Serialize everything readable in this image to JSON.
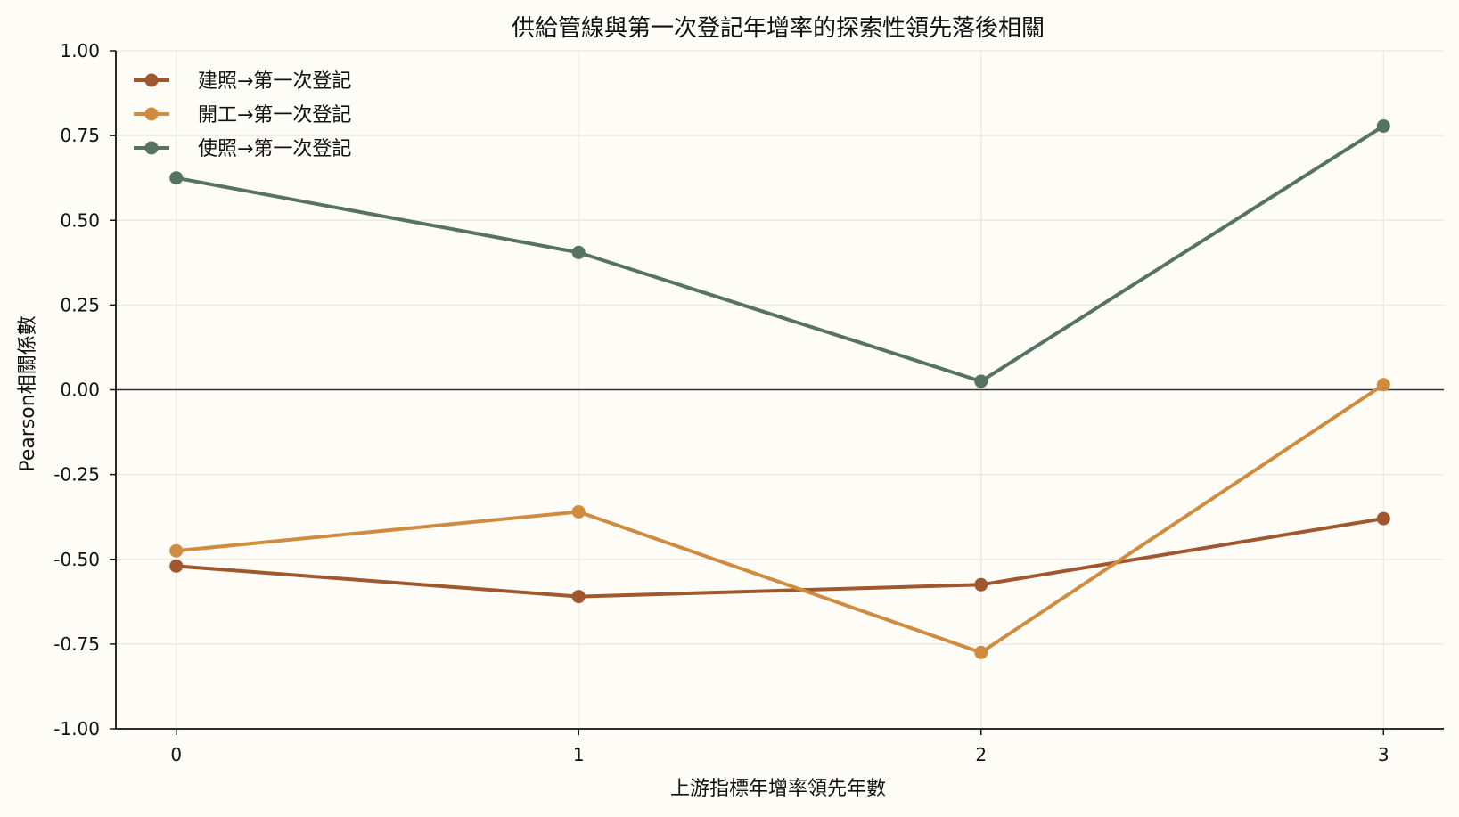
{
  "chart_data": {
    "type": "line",
    "title": "供給管線與第一次登記年增率的探索性領先落後相關",
    "xlabel": "上游指標年增率領先年數",
    "ylabel": "Pearson相關係數",
    "x": [
      0,
      1,
      2,
      3
    ],
    "x_tick_labels": [
      "0",
      "1",
      "2",
      "3"
    ],
    "ylim": [
      -1.0,
      1.0
    ],
    "y_ticks": [
      -1.0,
      -0.75,
      -0.5,
      -0.25,
      0.0,
      0.25,
      0.5,
      0.75,
      1.0
    ],
    "y_tick_labels": [
      "-1.00",
      "-0.75",
      "-0.50",
      "-0.25",
      "0.00",
      "0.25",
      "0.50",
      "0.75",
      "1.00"
    ],
    "grid": true,
    "zero_line": true,
    "legend_position": "top-left",
    "series": [
      {
        "name": "建照→第一次登記",
        "color": "#a0572e",
        "values": [
          -0.52,
          -0.61,
          -0.575,
          -0.38
        ]
      },
      {
        "name": "開工→第一次登記",
        "color": "#d08c3e",
        "values": [
          -0.475,
          -0.36,
          -0.775,
          0.015
        ]
      },
      {
        "name": "使照→第一次登記",
        "color": "#557360",
        "values": [
          0.625,
          0.405,
          0.025,
          0.778
        ]
      }
    ]
  }
}
